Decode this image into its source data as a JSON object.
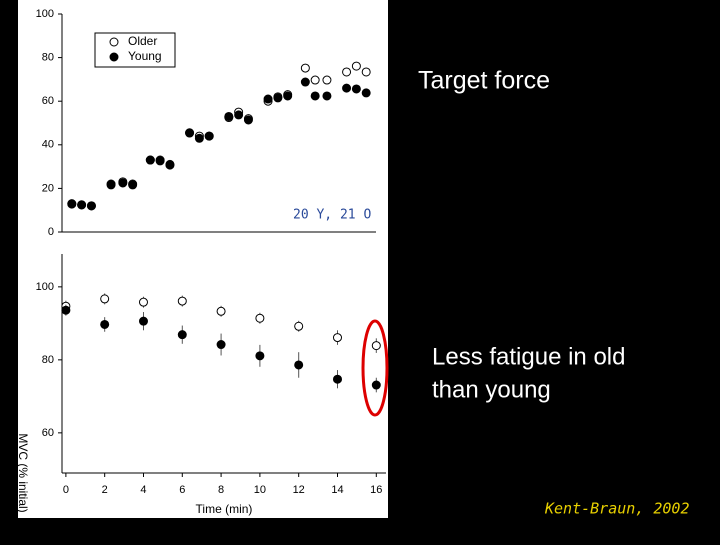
{
  "chart_data": [
    {
      "type": "scatter",
      "xlim": [
        0,
        16
      ],
      "ylim": [
        0,
        100
      ],
      "yticks": [
        0,
        20,
        40,
        60,
        80,
        100
      ],
      "legend": "top-left",
      "series": [
        {
          "name": "Older",
          "marker": "open",
          "color": "#000000",
          "x": [
            0.5,
            1.0,
            1.5,
            2.5,
            3.1,
            3.6,
            4.5,
            5.0,
            5.5,
            6.5,
            7.0,
            7.5,
            8.5,
            9.0,
            9.5,
            10.5,
            11.0,
            11.5,
            12.4,
            12.9,
            13.5,
            14.5,
            15.0,
            15.5
          ],
          "values": [
            13,
            12.5,
            12,
            22,
            23,
            22,
            33,
            33,
            31,
            45.5,
            44,
            44,
            52.5,
            55,
            52,
            60,
            62,
            63,
            75.2,
            69.7,
            69.7,
            73.4,
            76.1,
            73.4
          ]
        },
        {
          "name": "Young",
          "marker": "filled",
          "color": "#000000",
          "x": [
            0.5,
            1.0,
            1.5,
            2.5,
            3.1,
            3.6,
            4.5,
            5.0,
            5.5,
            6.5,
            7.0,
            7.5,
            8.5,
            9.0,
            9.5,
            10.5,
            11.0,
            11.5,
            12.4,
            12.9,
            13.5,
            14.5,
            15.0,
            15.5
          ],
          "values": [
            12.8,
            12.4,
            12,
            21.6,
            22.5,
            21.6,
            33,
            32.6,
            30.7,
            45.4,
            43,
            44,
            53,
            53.7,
            51.4,
            61,
            61.5,
            62.4,
            68.8,
            62.4,
            62.4,
            66,
            65.6,
            63.8
          ]
        }
      ]
    },
    {
      "type": "scatter",
      "xlim": [
        -0.2,
        16.5
      ],
      "ylim": [
        49,
        109
      ],
      "yticks": [
        60,
        80,
        100
      ],
      "xticks": [
        0,
        2,
        4,
        6,
        8,
        10,
        12,
        14,
        16
      ],
      "x_label": "Time (min)",
      "y_label": "MVC (% initial)",
      "series": [
        {
          "name": "Older",
          "marker": "open",
          "color": "#000000",
          "x": [
            0,
            2,
            4,
            6,
            8,
            10,
            12,
            14,
            16
          ],
          "values": [
            94.7,
            96.7,
            95.8,
            96.1,
            93.3,
            91.4,
            89.2,
            86.1,
            83.9
          ],
          "errors": [
            1.5,
            1.5,
            1.5,
            1.5,
            1.5,
            1.5,
            1.5,
            2,
            2
          ]
        },
        {
          "name": "Young",
          "marker": "filled",
          "color": "#000000",
          "x": [
            0,
            2,
            4,
            6,
            8,
            10,
            12,
            14,
            16
          ],
          "values": [
            93.6,
            89.7,
            90.6,
            86.9,
            84.2,
            81.1,
            78.6,
            74.7,
            73.1
          ],
          "errors": [
            1.5,
            2,
            2.5,
            2.5,
            3,
            3,
            3.5,
            2.5,
            2
          ]
        }
      ]
    }
  ],
  "slide": {
    "target": "Target force",
    "subjects": "20 Y, 21 O",
    "fatigue_line1": "Less fatigue in old",
    "fatigue_line2": "than young",
    "citation": "Kent-Braun, 2002"
  }
}
